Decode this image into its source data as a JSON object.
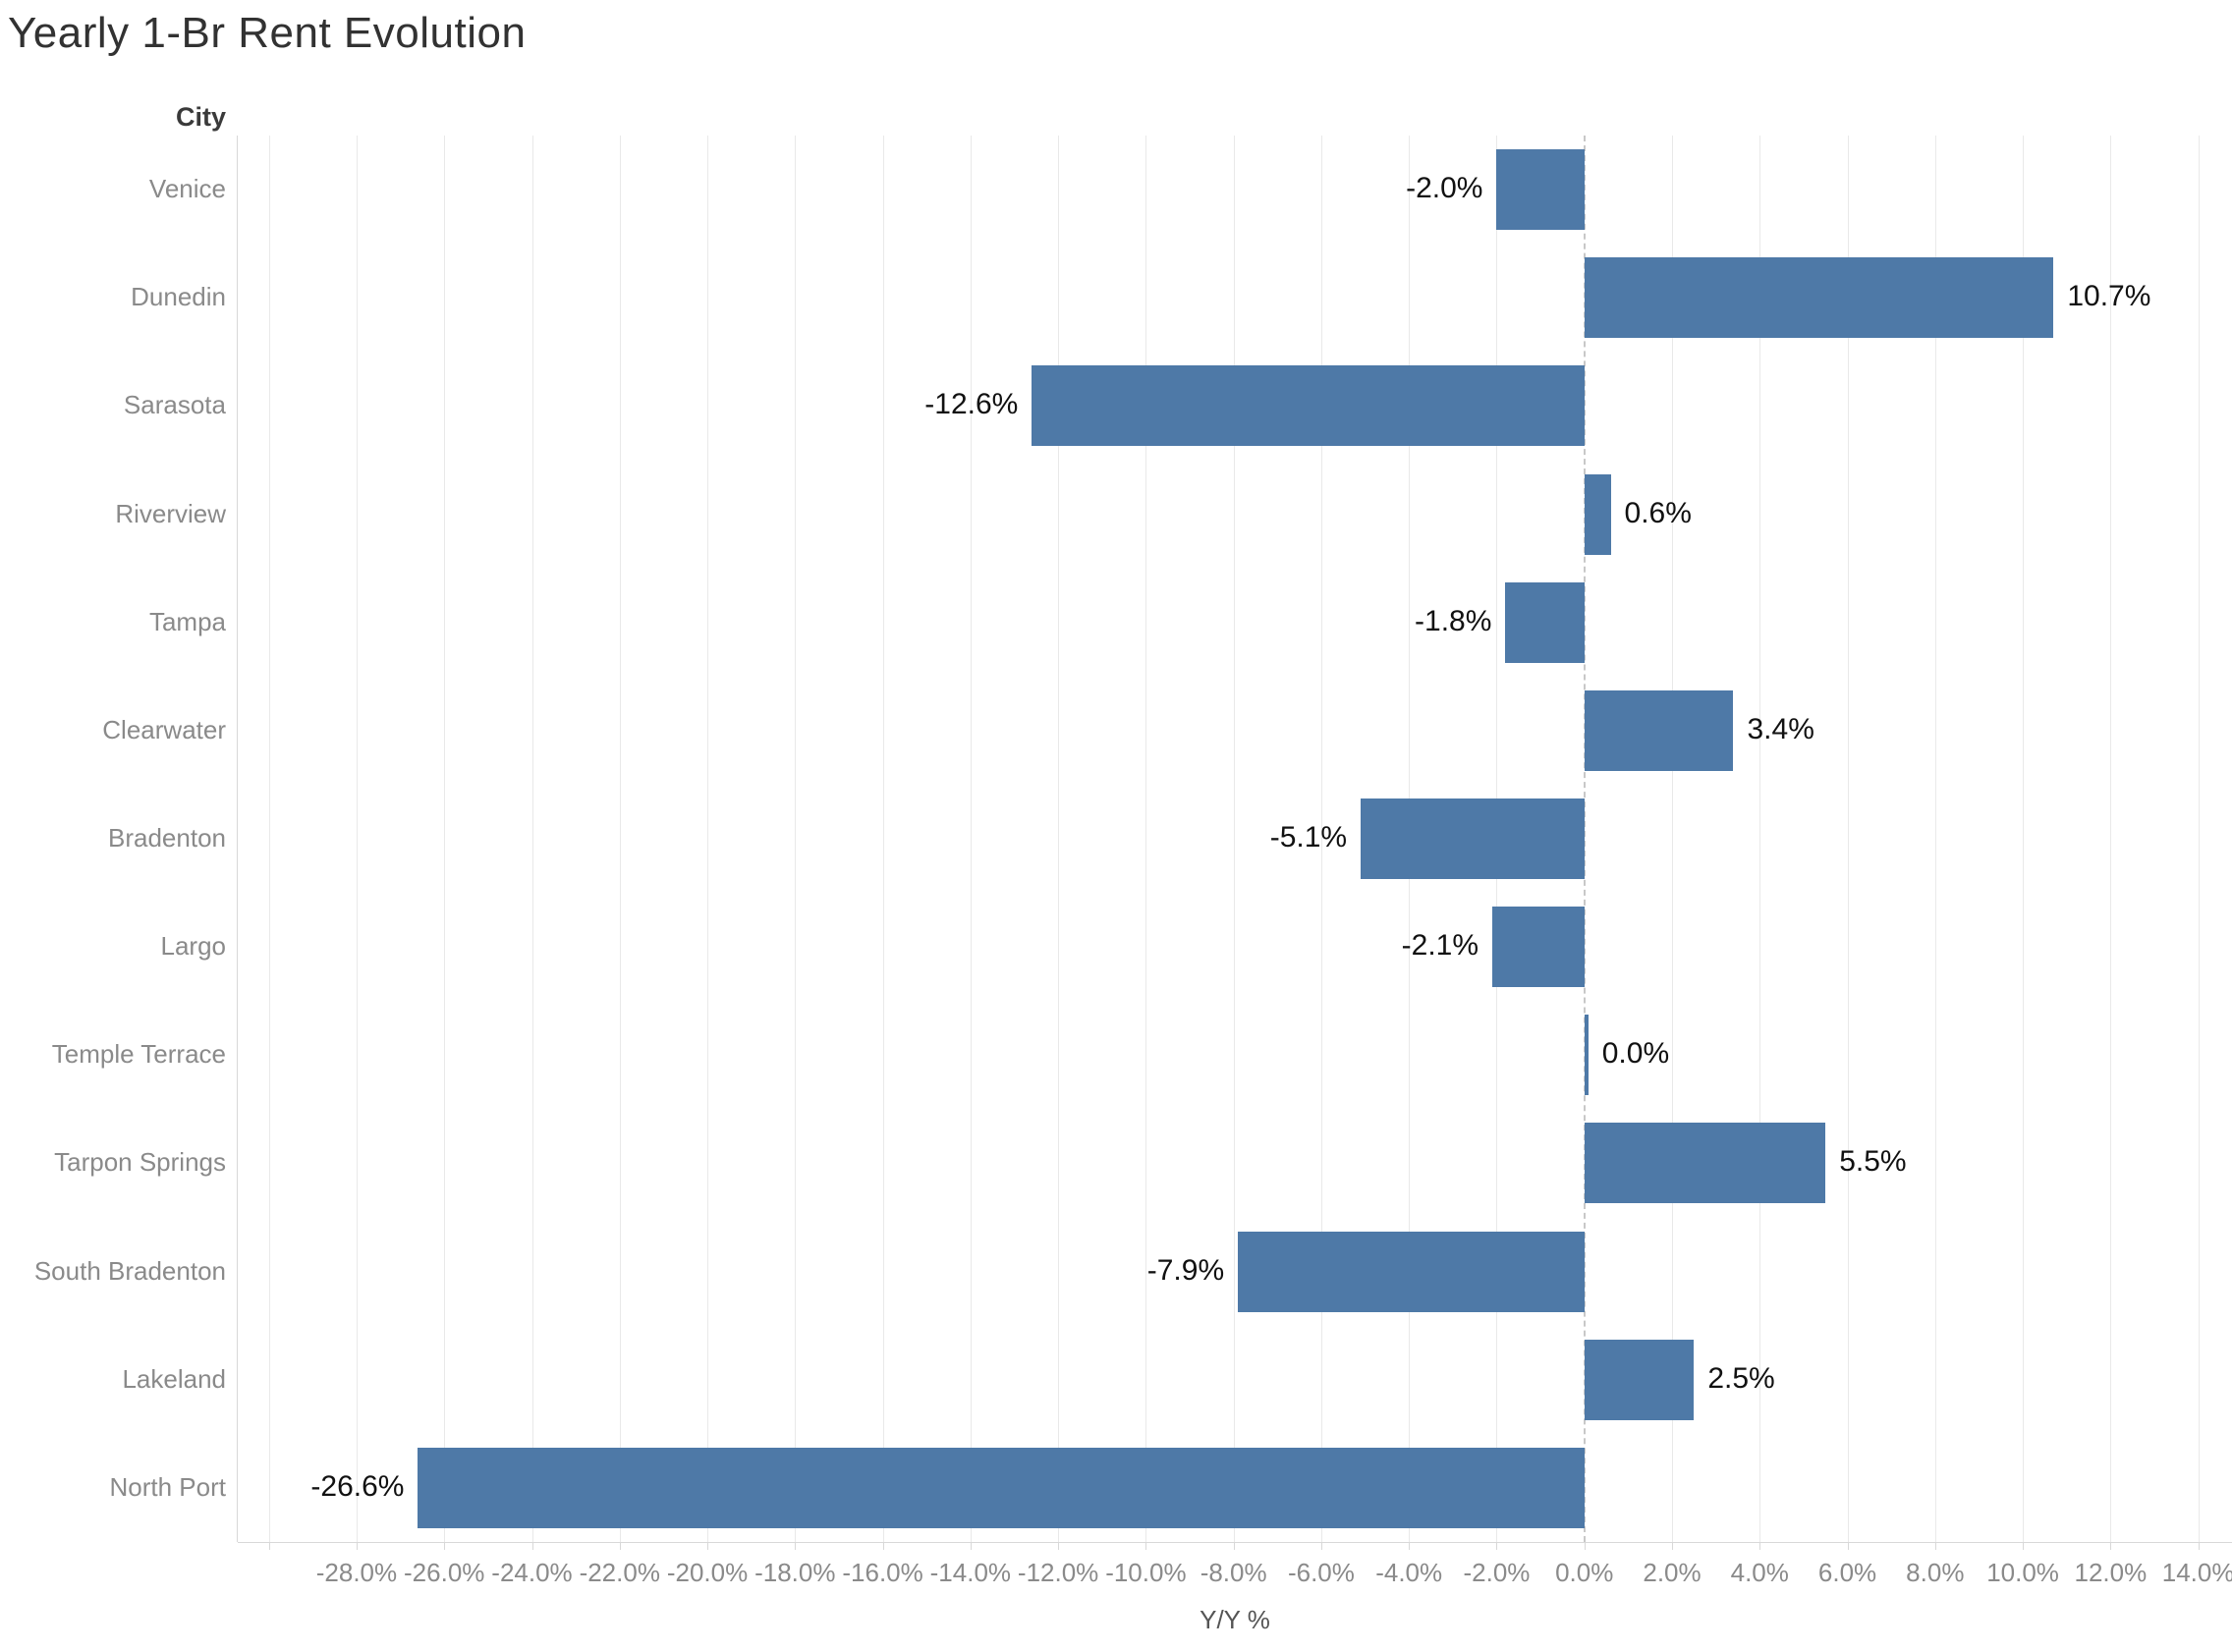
{
  "page": {
    "title": "Yearly 1-Br Rent Evolution"
  },
  "chart_data": {
    "type": "bar",
    "orientation": "horizontal",
    "title": "Yearly 1-Br Rent Evolution",
    "row_field_label": "City",
    "xlabel": "Y/Y %",
    "categories": [
      "Venice",
      "Dunedin",
      "Sarasota",
      "Riverview",
      "Tampa",
      "Clearwater",
      "Bradenton",
      "Largo",
      "Temple Terrace",
      "Tarpon Springs",
      "South Bradenton",
      "Lakeland",
      "North Port"
    ],
    "values": [
      -2.0,
      10.7,
      -12.6,
      0.6,
      -1.8,
      3.4,
      -5.1,
      -2.1,
      0.0,
      5.5,
      -7.9,
      2.5,
      -26.6
    ],
    "value_labels": [
      "-2.0%",
      "10.7%",
      "-12.6%",
      "0.6%",
      "-1.8%",
      "3.4%",
      "-5.1%",
      "-2.1%",
      "0.0%",
      "5.5%",
      "-7.9%",
      "2.5%",
      "-26.6%"
    ],
    "xlim": [
      -30.71,
      14.77
    ],
    "x_ticks": [
      {
        "v": -30,
        "label": ""
      },
      {
        "v": -28,
        "label": "-28.0%"
      },
      {
        "v": -26,
        "label": "-26.0%"
      },
      {
        "v": -24,
        "label": "-24.0%"
      },
      {
        "v": -22,
        "label": "-22.0%"
      },
      {
        "v": -20,
        "label": "-20.0%"
      },
      {
        "v": -18,
        "label": "-18.0%"
      },
      {
        "v": -16,
        "label": "-16.0%"
      },
      {
        "v": -14,
        "label": "-14.0%"
      },
      {
        "v": -12,
        "label": "-12.0%"
      },
      {
        "v": -10,
        "label": "-10.0%"
      },
      {
        "v": -8,
        "label": "-8.0%"
      },
      {
        "v": -6,
        "label": "-6.0%"
      },
      {
        "v": -4,
        "label": "-4.0%"
      },
      {
        "v": -2,
        "label": "-2.0%"
      },
      {
        "v": 0,
        "label": "0.0%"
      },
      {
        "v": 2,
        "label": "2.0%"
      },
      {
        "v": 4,
        "label": "4.0%"
      },
      {
        "v": 6,
        "label": "6.0%"
      },
      {
        "v": 8,
        "label": "8.0%"
      },
      {
        "v": 10,
        "label": "10.0%"
      },
      {
        "v": 12,
        "label": "12.0%"
      },
      {
        "v": 14,
        "label": "14.0%"
      }
    ],
    "grid": "on",
    "legend": "none",
    "zero_line_style": "dashed"
  },
  "colors": {
    "bar": "#4e79a7",
    "gridline": "#e9e9e9",
    "zero_line": "#c8c8c8",
    "axis_line": "#d8d8d8",
    "tick_text": "#8a8a8a",
    "category_text": "#8a8a8a",
    "header_text": "#3a3a3a",
    "title_text": "#323232",
    "value_text": "#111111"
  }
}
